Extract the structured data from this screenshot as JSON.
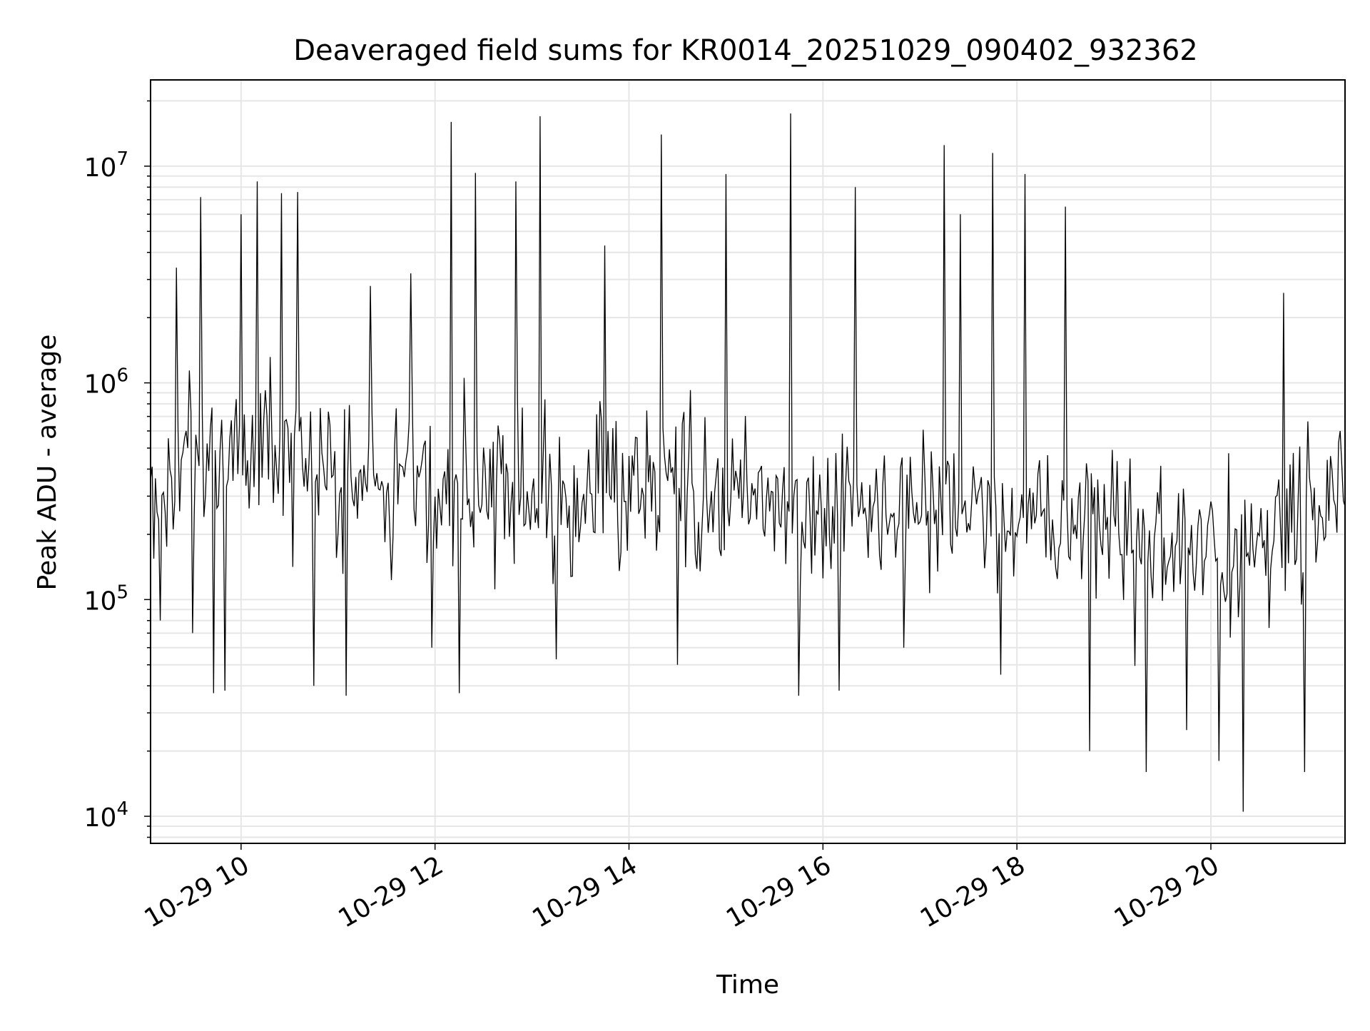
{
  "chart_data": {
    "type": "line",
    "title": "Deaveraged field sums for KR0014_20251029_090402_932362",
    "xlabel": "Time",
    "ylabel": "Peak ADU - average",
    "x_axis": {
      "kind": "datetime",
      "range": [
        "2025-10-29T09:04",
        "2025-10-29T21:23"
      ],
      "ticks": [
        "2025-10-29T10:00",
        "2025-10-29T12:00",
        "2025-10-29T14:00",
        "2025-10-29T16:00",
        "2025-10-29T18:00",
        "2025-10-29T20:00"
      ],
      "tick_labels": [
        "10-29 10",
        "10-29 12",
        "10-29 14",
        "10-29 16",
        "10-29 18",
        "10-29 20"
      ],
      "tick_label_rotation_deg": 30
    },
    "y_axis": {
      "scale": "log",
      "range": [
        7500,
        25000000
      ],
      "ticks": [
        10000,
        100000,
        1000000,
        10000000
      ],
      "tick_labels": [
        {
          "base": "10",
          "exp": "4"
        },
        {
          "base": "10",
          "exp": "5"
        },
        {
          "base": "10",
          "exp": "6"
        },
        {
          "base": "10",
          "exp": "7"
        }
      ]
    },
    "grid": true,
    "grid_minor_y": true,
    "line_color": "#000000",
    "grid_color": "#e6e6e6",
    "legend": "none",
    "series": [
      {
        "sampling": "approximately one sample per minute; irregular noisy signal, values below are read from the plot",
        "points": [
          [
            "2025-10-29T09:10",
            80000
          ],
          [
            "2025-10-29T09:20",
            3400000
          ],
          [
            "2025-10-29T09:30",
            70000
          ],
          [
            "2025-10-29T09:35",
            7200000
          ],
          [
            "2025-10-29T09:43",
            37000
          ],
          [
            "2025-10-29T09:50",
            38000
          ],
          [
            "2025-10-29T10:00",
            6000000
          ],
          [
            "2025-10-29T10:10",
            8500000
          ],
          [
            "2025-10-29T10:25",
            7500000
          ],
          [
            "2025-10-29T10:35",
            7600000
          ],
          [
            "2025-10-29T10:45",
            40000
          ],
          [
            "2025-10-29T11:05",
            36000
          ],
          [
            "2025-10-29T11:20",
            2800000
          ],
          [
            "2025-10-29T11:45",
            3200000
          ],
          [
            "2025-10-29T11:58",
            60000
          ],
          [
            "2025-10-29T12:10",
            16000000
          ],
          [
            "2025-10-29T12:15",
            37000
          ],
          [
            "2025-10-29T12:25",
            9300000
          ],
          [
            "2025-10-29T12:50",
            8500000
          ],
          [
            "2025-10-29T13:05",
            17000000
          ],
          [
            "2025-10-29T13:15",
            53000
          ],
          [
            "2025-10-29T13:45",
            4300000
          ],
          [
            "2025-10-29T14:20",
            14000000
          ],
          [
            "2025-10-29T14:30",
            50000
          ],
          [
            "2025-10-29T15:00",
            9200000
          ],
          [
            "2025-10-29T15:40",
            17500000
          ],
          [
            "2025-10-29T15:45",
            36000
          ],
          [
            "2025-10-29T16:10",
            38000
          ],
          [
            "2025-10-29T16:20",
            8000000
          ],
          [
            "2025-10-29T16:50",
            60000
          ],
          [
            "2025-10-29T17:15",
            12500000
          ],
          [
            "2025-10-29T17:25",
            6000000
          ],
          [
            "2025-10-29T17:45",
            11500000
          ],
          [
            "2025-10-29T17:50",
            45000
          ],
          [
            "2025-10-29T18:05",
            9200000
          ],
          [
            "2025-10-29T18:30",
            6500000
          ],
          [
            "2025-10-29T18:45",
            20000
          ],
          [
            "2025-10-29T19:20",
            16000
          ],
          [
            "2025-10-29T19:45",
            25000
          ],
          [
            "2025-10-29T20:05",
            18000
          ],
          [
            "2025-10-29T20:20",
            10500
          ],
          [
            "2025-10-29T20:45",
            2600000
          ],
          [
            "2025-10-29T20:58",
            16000
          ],
          [
            "2025-10-29T21:20",
            600000
          ]
        ]
      }
    ]
  }
}
